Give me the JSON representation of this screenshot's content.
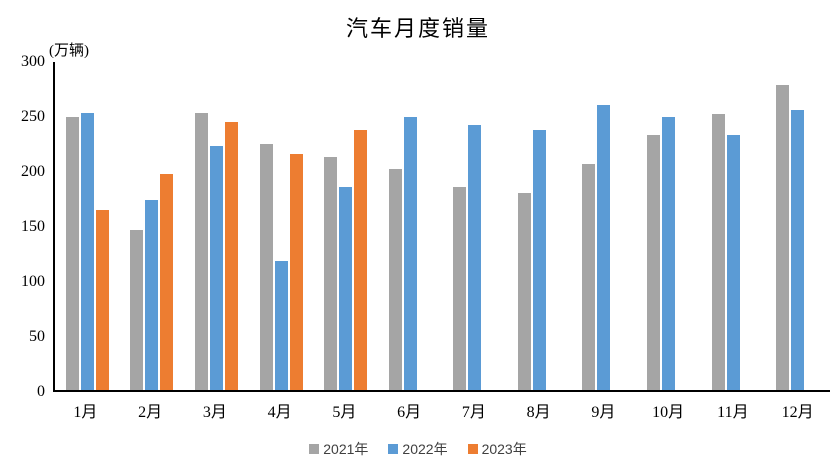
{
  "title": "汽车月度销量",
  "unit_label": "(万辆)",
  "chart_data": {
    "type": "bar",
    "title": "汽车月度销量",
    "ylabel": "(万辆)",
    "xlabel": "",
    "categories": [
      "1月",
      "2月",
      "3月",
      "4月",
      "5月",
      "6月",
      "7月",
      "8月",
      "9月",
      "10月",
      "11月",
      "12月"
    ],
    "series": [
      {
        "name": "2021年",
        "color": "#a5a5a5",
        "values": [
          250,
          146,
          253,
          225,
          213,
          202,
          186,
          180,
          207,
          233,
          252,
          279
        ]
      },
      {
        "name": "2022年",
        "color": "#5b9bd5",
        "values": [
          253,
          174,
          223,
          118,
          186,
          250,
          242,
          238,
          261,
          250,
          233,
          256
        ]
      },
      {
        "name": "2023年",
        "color": "#ed7d31",
        "values": [
          165,
          198,
          245,
          216,
          238,
          null,
          null,
          null,
          null,
          null,
          null,
          null
        ]
      }
    ],
    "ylim": [
      0,
      300
    ],
    "yticks": [
      0,
      50,
      100,
      150,
      200,
      250,
      300
    ],
    "grid": false,
    "legend_position": "bottom",
    "axis_color": "#000000",
    "background_color": "#ffffff"
  }
}
